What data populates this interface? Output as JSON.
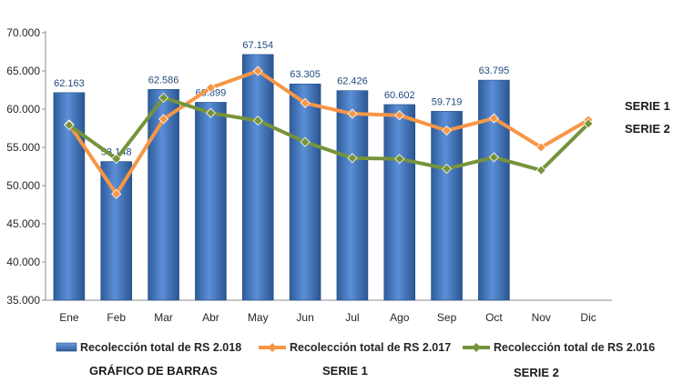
{
  "chart_data": {
    "type": "bar",
    "categories": [
      "Ene",
      "Feb",
      "Mar",
      "Abr",
      "May",
      "Jun",
      "Jul",
      "Ago",
      "Sep",
      "Oct",
      "Nov",
      "Dic"
    ],
    "ylim": [
      35000,
      70000
    ],
    "yticks": [
      35000,
      40000,
      45000,
      50000,
      55000,
      60000,
      65000,
      70000
    ],
    "ytick_labels": [
      "35.000",
      "40.000",
      "45.000",
      "50.000",
      "55.000",
      "60.000",
      "65.000",
      "70.000"
    ],
    "series": [
      {
        "name": "Recolección total de RS 2.018",
        "kind": "bar",
        "color": "#4F81BD",
        "values": [
          62163,
          53148,
          62586,
          60899,
          67154,
          63305,
          62426,
          60602,
          59719,
          63795,
          null,
          null
        ],
        "data_labels": [
          "62.163",
          "53.148",
          "62.586",
          "60.899",
          "67.154",
          "63.305",
          "62.426",
          "60.602",
          "59.719",
          "63.795",
          "",
          ""
        ]
      },
      {
        "name": "Recolección total de RS 2.017",
        "kind": "line",
        "color": "#F79646",
        "values": [
          58000,
          48900,
          58700,
          62800,
          65000,
          60800,
          59400,
          59200,
          57200,
          58800,
          55000,
          58600
        ]
      },
      {
        "name": "Recolección total de RS 2.016",
        "kind": "line",
        "color": "#77933C",
        "values": [
          57900,
          53500,
          61500,
          59500,
          58500,
          55700,
          53600,
          53500,
          52200,
          53700,
          52000,
          58100
        ]
      }
    ],
    "legend_position": "bottom",
    "grid": false
  },
  "annotations": {
    "serie1_tag": "SERIE 1",
    "serie2_tag": "SERIE 2",
    "caption_bars": "GRÁFICO DE BARRAS",
    "caption_serie1": "SERIE 1",
    "caption_serie2": "SERIE 2"
  }
}
